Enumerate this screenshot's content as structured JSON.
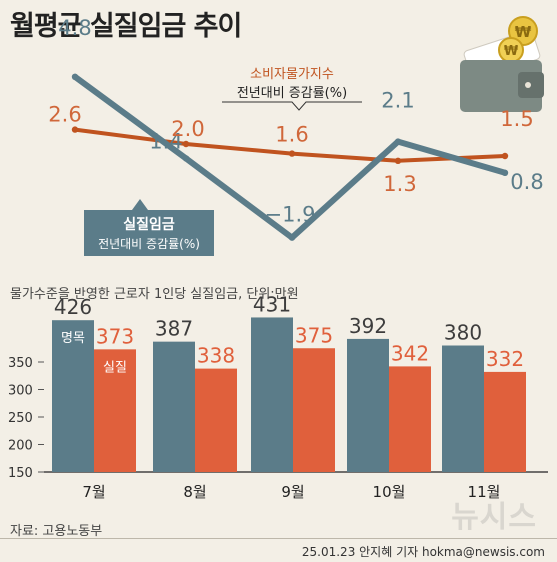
{
  "title": "월평균 실질임금 추이",
  "subtitle": "물가수준을 반영한 근로자 1인당 실질임금, 단위:만원",
  "source": "자료: 고용노동부",
  "credit": "25.01.23 안지혜 기자 hokma@newsis.com",
  "watermark": "뉴시스",
  "colors": {
    "wage": "#5b7c89",
    "cpi": "#c0531f",
    "nominal_bar": "#5b7c89",
    "real_bar": "#e0603c",
    "background": "#f3efe6",
    "wage_label": "#5b7c89",
    "cpi_label": "#d0673a"
  },
  "chart_data": [
    {
      "type": "line",
      "series": [
        {
          "name_line1": "실질임금",
          "name_line2": "전년대비 증감률(%)",
          "values": [
            4.8,
            1.4,
            -1.9,
            2.1,
            0.8
          ]
        },
        {
          "name_line1": "소비자물가지수",
          "name_line2": "전년대비 증감률(%)",
          "values": [
            2.6,
            2.0,
            1.6,
            1.3,
            1.5
          ]
        }
      ],
      "value_labels": [
        [
          "4.8",
          "1.4",
          "−1.9",
          "2.1",
          "0.8"
        ],
        [
          "2.6",
          "2.0",
          "1.6",
          "1.3",
          "1.5"
        ]
      ],
      "ylim": [
        -2.5,
        5.5
      ]
    },
    {
      "type": "bar",
      "categories": [
        "7월",
        "8월",
        "9월",
        "10월",
        "11월"
      ],
      "series": [
        {
          "name": "명목",
          "values": [
            426,
            387,
            431,
            392,
            380
          ]
        },
        {
          "name": "실질",
          "values": [
            373,
            338,
            375,
            342,
            332
          ]
        }
      ],
      "yticks": [
        "150",
        "200",
        "250",
        "300",
        "350"
      ],
      "ylim": [
        150,
        450
      ],
      "ylabel": "단위:만원"
    }
  ],
  "wallet_icon": "wallet-icon",
  "coin_symbol": "₩"
}
